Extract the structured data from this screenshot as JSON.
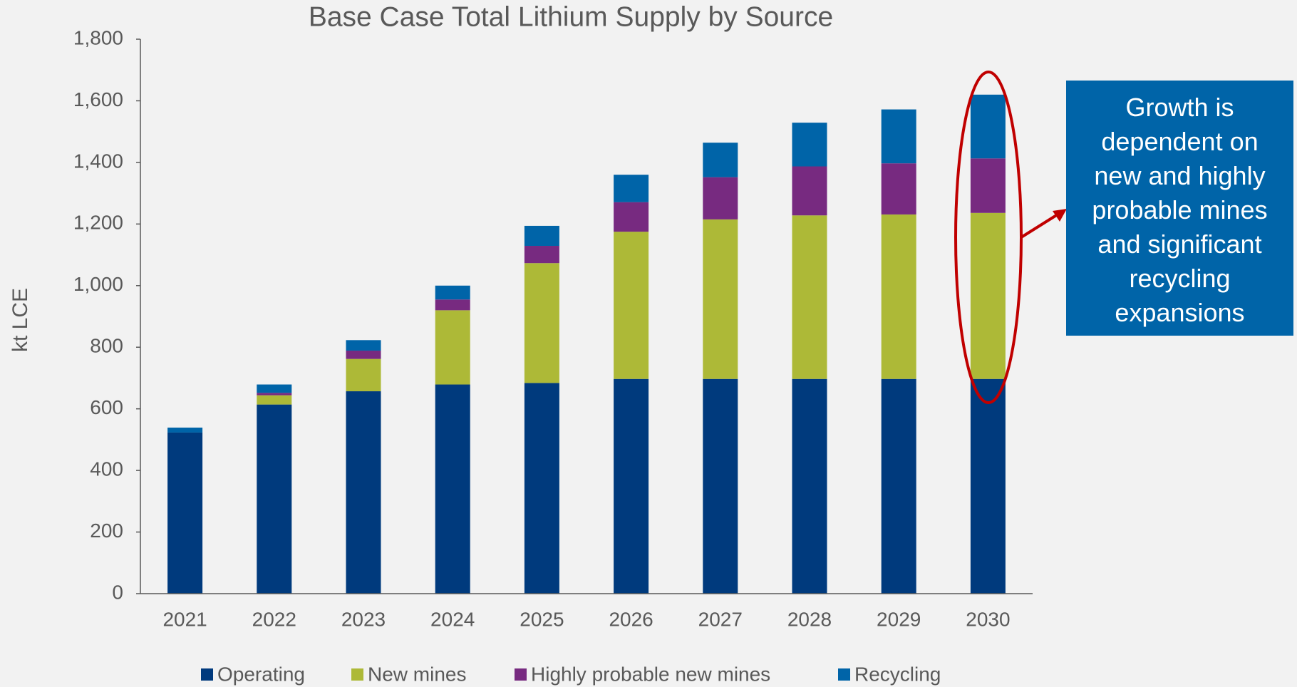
{
  "chart_data": {
    "type": "stacked_bar",
    "title": "Base Case Total Lithium Supply by Source",
    "y_label": "kt LCE",
    "categories": [
      "2021",
      "2022",
      "2023",
      "2024",
      "2025",
      "2026",
      "2027",
      "2028",
      "2029",
      "2030"
    ],
    "series": [
      {
        "name": "Operating",
        "color": "#003a7d",
        "values": [
          523,
          614,
          657,
          679,
          684,
          697,
          697,
          697,
          697,
          697
        ]
      },
      {
        "name": "New mines",
        "color": "#adb937",
        "values": [
          0,
          30,
          105,
          241,
          389,
          478,
          518,
          531,
          534,
          539
        ]
      },
      {
        "name": "Highly probable new mines",
        "color": "#772a80",
        "values": [
          0,
          8,
          27,
          35,
          56,
          96,
          137,
          159,
          166,
          177
        ]
      },
      {
        "name": "Recycling",
        "color": "#0064a8",
        "values": [
          16,
          27,
          34,
          45,
          65,
          89,
          112,
          142,
          175,
          207
        ]
      }
    ],
    "ylim": [
      0,
      1800
    ],
    "yticks": [
      0,
      200,
      400,
      600,
      800,
      {
        "value": 1000,
        "label": "1,000"
      },
      {
        "value": 1200,
        "label": "1,200"
      },
      {
        "value": 1400,
        "label": "1,400"
      },
      {
        "value": 1600,
        "label": "1,600"
      },
      {
        "value": 1800,
        "label": "1,800"
      }
    ],
    "grid": false,
    "legend": "bottom",
    "annotation": "Growth is dependent on new and highly probable mines and significant recycling expansions"
  }
}
